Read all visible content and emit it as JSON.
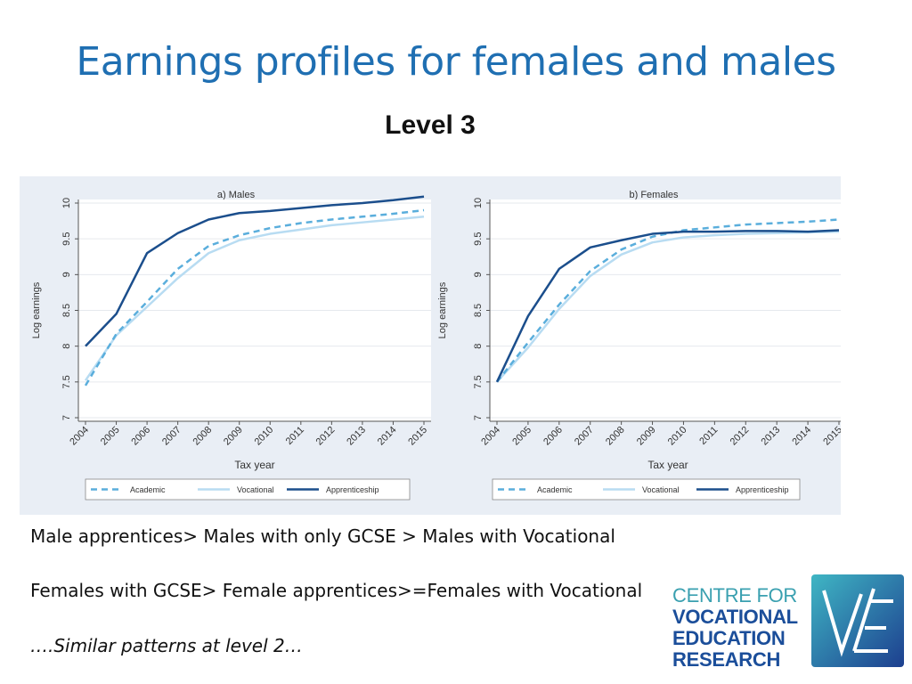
{
  "slide": {
    "title": "Earnings profiles for females and males",
    "subtitle": "Level 3"
  },
  "bullets": {
    "line1": "Male apprentices> Males with only GCSE > Males with Vocational",
    "line2": "Females with GCSE> Female apprentices>=Females with Vocational",
    "line3": "….Similar patterns at level 2…"
  },
  "logo": {
    "lines": [
      "CENTRE FOR",
      "VOCATIONAL",
      "EDUCATION",
      "RESEARCH"
    ],
    "mark_icon": "ve-monogram-icon"
  },
  "colors": {
    "title": "#1f6fb2",
    "academic": "#5aaedc",
    "vocational": "#b8dcf2",
    "apprenticeship": "#1b4e8c",
    "panel_bg": "#e9eef5",
    "plot_bg": "#ffffff"
  },
  "chart_data": [
    {
      "type": "line",
      "title": "a) Males",
      "xlabel": "Tax year",
      "ylabel": "Log earnings",
      "ylim": [
        7,
        10
      ],
      "yticks": [
        "7",
        "7.5",
        "8",
        "8.5",
        "9",
        "9.5",
        "10"
      ],
      "categories": [
        "2004",
        "2005",
        "2006",
        "2007",
        "2008",
        "2009",
        "2010",
        "2011",
        "2012",
        "2013",
        "2014",
        "2015"
      ],
      "grid": true,
      "legend": "bottom",
      "series": [
        {
          "name": "Academic",
          "style": "dashed",
          "values": [
            7.45,
            8.17,
            8.62,
            9.08,
            9.4,
            9.55,
            9.65,
            9.72,
            9.77,
            9.81,
            9.85,
            9.9
          ]
        },
        {
          "name": "Vocational",
          "style": "solid-light",
          "values": [
            7.52,
            8.15,
            8.55,
            8.95,
            9.3,
            9.48,
            9.57,
            9.63,
            9.69,
            9.73,
            9.77,
            9.81
          ]
        },
        {
          "name": "Apprenticeship",
          "style": "solid-dark",
          "values": [
            8.0,
            8.45,
            9.3,
            9.58,
            9.77,
            9.86,
            9.89,
            9.93,
            9.97,
            10.0,
            10.04,
            10.09
          ]
        }
      ]
    },
    {
      "type": "line",
      "title": "b) Females",
      "xlabel": "Tax year",
      "ylabel": "Log earnings",
      "ylim": [
        7,
        10
      ],
      "yticks": [
        "7",
        "7.5",
        "8",
        "8.5",
        "9",
        "9.5",
        "10"
      ],
      "categories": [
        "2004",
        "2005",
        "2006",
        "2007",
        "2008",
        "2009",
        "2010",
        "2011",
        "2012",
        "2013",
        "2014",
        "2015"
      ],
      "grid": true,
      "legend": "bottom",
      "series": [
        {
          "name": "Academic",
          "style": "dashed",
          "values": [
            7.5,
            8.05,
            8.58,
            9.05,
            9.35,
            9.53,
            9.62,
            9.66,
            9.7,
            9.72,
            9.74,
            9.77
          ]
        },
        {
          "name": "Vocational",
          "style": "solid-light",
          "values": [
            7.5,
            7.98,
            8.52,
            8.98,
            9.28,
            9.45,
            9.52,
            9.55,
            9.57,
            9.58,
            9.59,
            9.6
          ]
        },
        {
          "name": "Apprenticeship",
          "style": "solid-dark",
          "values": [
            7.5,
            8.42,
            9.08,
            9.38,
            9.48,
            9.57,
            9.6,
            9.6,
            9.61,
            9.61,
            9.6,
            9.62
          ]
        }
      ]
    }
  ]
}
